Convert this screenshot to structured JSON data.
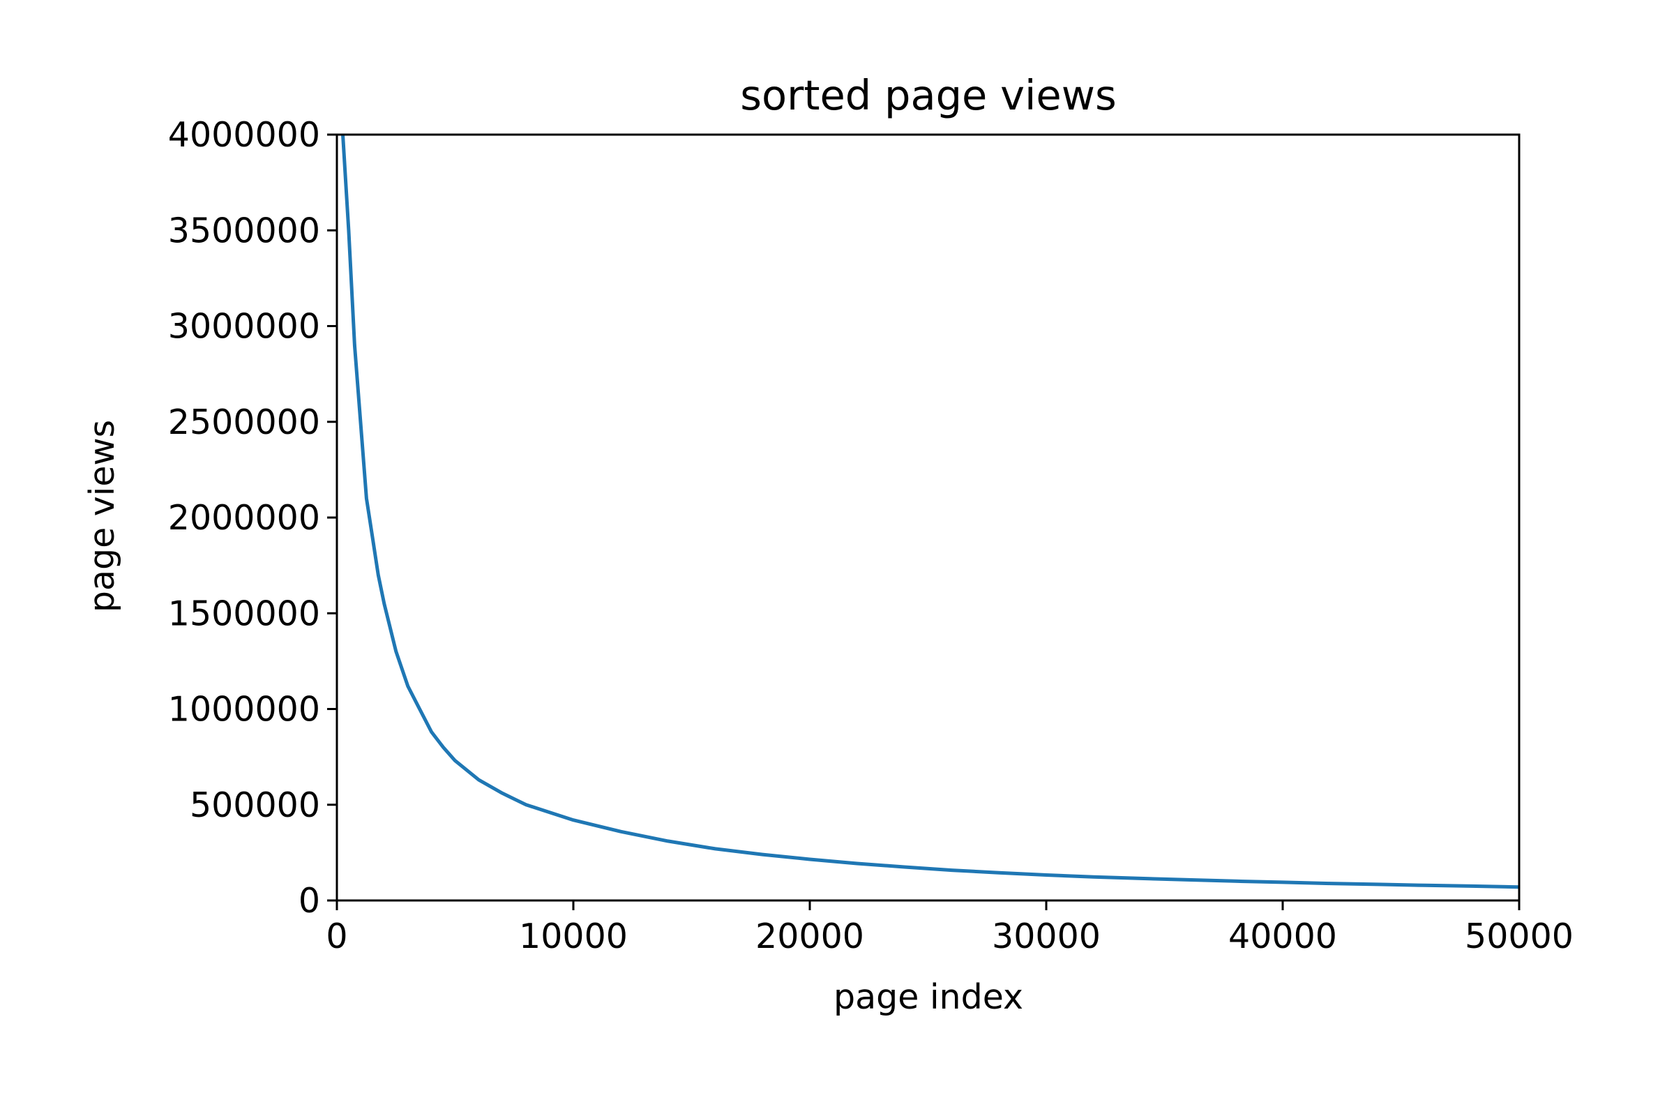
{
  "chart_data": {
    "type": "line",
    "title": "sorted page views",
    "xlabel": "page index",
    "ylabel": "page views",
    "xlim": [
      0,
      50000
    ],
    "ylim": [
      0,
      4000000
    ],
    "xticks": [
      0,
      10000,
      20000,
      30000,
      40000,
      50000
    ],
    "xtick_labels": [
      "0",
      "10000",
      "20000",
      "30000",
      "40000",
      "50000"
    ],
    "yticks": [
      0,
      500000,
      1000000,
      1500000,
      2000000,
      2500000,
      3000000,
      3500000,
      4000000
    ],
    "ytick_labels": [
      "0",
      "500000",
      "1000000",
      "1500000",
      "2000000",
      "2500000",
      "3000000",
      "3500000",
      "4000000"
    ],
    "grid": false,
    "series": [
      {
        "color": "#1f77b4",
        "x": [
          250,
          500,
          750,
          1000,
          1250,
          1500,
          1750,
          2000,
          2500,
          3000,
          3500,
          4000,
          4500,
          5000,
          6000,
          7000,
          8000,
          9000,
          10000,
          12000,
          14000,
          16000,
          18000,
          20000,
          22000,
          24000,
          26000,
          28000,
          30000,
          32000,
          34000,
          36000,
          38000,
          40000,
          42000,
          44000,
          46000,
          48000,
          50000
        ],
        "y": [
          4000000,
          3500000,
          2900000,
          2500000,
          2100000,
          1900000,
          1700000,
          1550000,
          1300000,
          1120000,
          1000000,
          880000,
          800000,
          730000,
          630000,
          560000,
          500000,
          460000,
          420000,
          360000,
          310000,
          270000,
          240000,
          215000,
          193000,
          175000,
          158000,
          145000,
          133000,
          123000,
          115000,
          108000,
          101000,
          95000,
          89000,
          84000,
          79000,
          75000,
          70000
        ]
      }
    ]
  }
}
